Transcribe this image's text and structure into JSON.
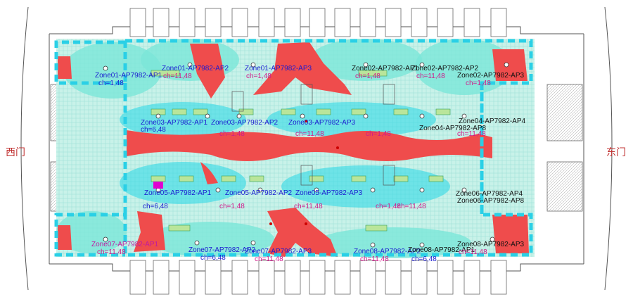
{
  "gates": {
    "west": "西门",
    "east": "东门"
  },
  "colors": {
    "coverage_strong": "#24d7e6",
    "coverage_mid": "#7be6d8",
    "coverage_weak": "#c8f2e9",
    "dead_zone": "#ef4c4c",
    "zone_border": "#2ad0e6",
    "ap_label": "#1a1ad0",
    "channel_label": "#d01a8a",
    "wall": "#555555"
  },
  "access_points": [
    {
      "name": "Zone01-AP7982-AP1",
      "ch": "ch=1,48"
    },
    {
      "name": "Zone01-AP7982-AP2",
      "ch": "ch=11,48"
    },
    {
      "name": "Zone01-AP7982-AP3",
      "ch": "ch=1,48"
    },
    {
      "name": "Zone02-AP7982-AP1",
      "ch": "ch=1,48"
    },
    {
      "name": "Zone02-AP7982-AP2",
      "ch": "ch=11,48"
    },
    {
      "name": "Zone02-AP7982-AP3",
      "ch": "ch=1,48"
    },
    {
      "name": "Zone03-AP7982-AP1",
      "ch": "ch=6,48"
    },
    {
      "name": "Zone03-AP7982-AP2",
      "ch": "ch=1,48"
    },
    {
      "name": "Zone03-AP7982-AP3",
      "ch": "ch=11,48"
    },
    {
      "name": "Zone04-AP7982-AP4",
      "ch": "ch=1,48"
    },
    {
      "name": "Zone04-AP7982-AP8",
      "ch": "ch=11,48"
    },
    {
      "name": "Zone05-AP7982-AP1",
      "ch": "ch=6,48"
    },
    {
      "name": "Zone05-AP7982-AP2",
      "ch": "ch=1,48"
    },
    {
      "name": "Zone05-AP7982-AP3",
      "ch": "ch=11,48"
    },
    {
      "name": "Zone06-AP7982-AP4",
      "ch": "ch=1,48"
    },
    {
      "name": "Zone06-AP7982-AP8",
      "ch": "ch=11,48"
    },
    {
      "name": "Zone07-AP7982-AP1",
      "ch": "ch=11,48"
    },
    {
      "name": "Zone07-AP7982-AP2",
      "ch": "ch=6,48"
    },
    {
      "name": "Zone07-AP7982-AP3",
      "ch": "ch=11,48"
    },
    {
      "name": "Zone08-AP7982-AP2",
      "ch": "ch=11,48"
    },
    {
      "name": "Zone08-AP7982-AP1",
      "ch": "ch=6,48"
    },
    {
      "name": "Zone08-AP7982-AP3",
      "ch": "ch=11,48"
    }
  ]
}
